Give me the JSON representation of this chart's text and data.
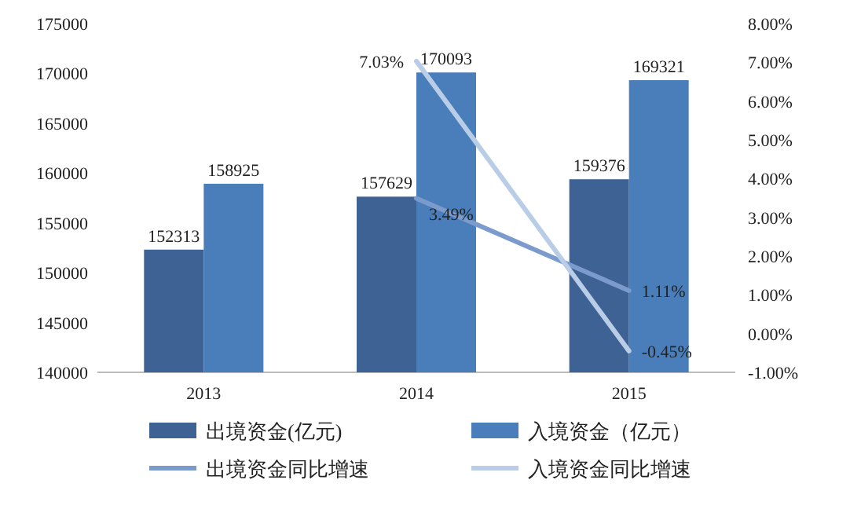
{
  "chart_data": {
    "type": "bar",
    "categories": [
      "2013",
      "2014",
      "2015"
    ],
    "series": [
      {
        "name": "出境资金(亿元)",
        "color": "#3d6293",
        "values": [
          152313,
          157629,
          159376
        ],
        "value_labels": [
          "152313",
          "157629",
          "159376"
        ]
      },
      {
        "name": "入境资金（亿元）",
        "color": "#4a7ebb",
        "values": [
          158925,
          170093,
          169321
        ],
        "value_labels": [
          "158925",
          "170093",
          "169321"
        ]
      },
      {
        "name": "出境资金同比增速",
        "type": "line",
        "axis": "y2",
        "color": "#7a9bcb",
        "values": [
          null,
          3.49,
          1.11
        ],
        "value_labels": [
          null,
          "3.49%",
          "1.11%"
        ]
      },
      {
        "name": "入境资金同比增速",
        "type": "line",
        "axis": "y2",
        "color": "#b9cde6",
        "values": [
          null,
          7.03,
          -0.45
        ],
        "value_labels": [
          null,
          "7.03%",
          "-0.45%"
        ]
      }
    ],
    "ylim": [
      140000,
      175000
    ],
    "yticks": [
      140000,
      145000,
      150000,
      155000,
      160000,
      165000,
      170000,
      175000
    ],
    "y2lim": [
      -1,
      8
    ],
    "y2ticks": [
      {
        "value": -1,
        "label": "-1.00%"
      },
      {
        "value": 0,
        "label": "0.00%"
      },
      {
        "value": 1,
        "label": "1.00%"
      },
      {
        "value": 2,
        "label": "2.00%"
      },
      {
        "value": 3,
        "label": "3.00%"
      },
      {
        "value": 4,
        "label": "4.00%"
      },
      {
        "value": 5,
        "label": "5.00%"
      },
      {
        "value": 6,
        "label": "6.00%"
      },
      {
        "value": 7,
        "label": "7.00%"
      },
      {
        "value": 8,
        "label": "8.00%"
      }
    ],
    "legend": "bottom"
  }
}
